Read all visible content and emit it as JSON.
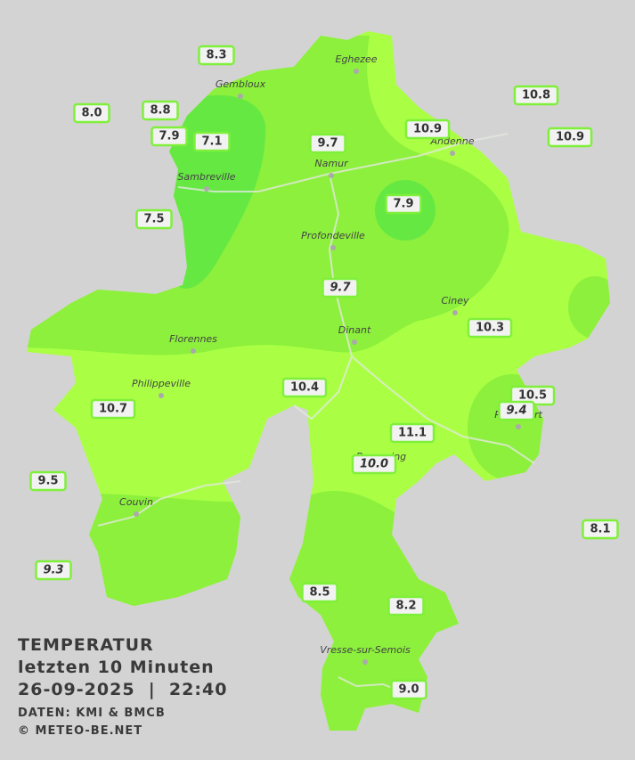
{
  "legend": {
    "title": "TEMPERATUR",
    "subtitle": "letzten 10 Minuten",
    "datetime": "26-09-2025  |  22:40",
    "source": "DATEN: KMI & BMCB",
    "copyright": "© METEO-BE.NET"
  },
  "towns": [
    "Eghezee",
    "Gembloux",
    "Andenne",
    "Namur",
    "Sambreville",
    "Profondeville",
    "Ciney",
    "Dinant",
    "Florennes",
    "Philippeville",
    "Rochefort",
    "Beauraing",
    "Couvin",
    "Vresse-sur-Semois"
  ],
  "stations": [
    {
      "label": "8.3"
    },
    {
      "label": "8.0"
    },
    {
      "label": "8.8"
    },
    {
      "label": "7.9"
    },
    {
      "label": "7.1"
    },
    {
      "label": "7.5"
    },
    {
      "label": "9.7"
    },
    {
      "label": "10.9"
    },
    {
      "label": "10.8"
    },
    {
      "label": "10.9"
    },
    {
      "label": "7.9"
    },
    {
      "label": "9.7",
      "italic": true
    },
    {
      "label": "10.3"
    },
    {
      "label": "10.4"
    },
    {
      "label": "10.7"
    },
    {
      "label": "10.5"
    },
    {
      "label": "9.4",
      "italic": true
    },
    {
      "label": "11.1"
    },
    {
      "label": "10.0",
      "italic": true
    },
    {
      "label": "9.5"
    },
    {
      "label": "8.1"
    },
    {
      "label": "9.3",
      "italic": true
    },
    {
      "label": "8.5"
    },
    {
      "label": "8.2"
    },
    {
      "label": "9.0"
    }
  ]
}
